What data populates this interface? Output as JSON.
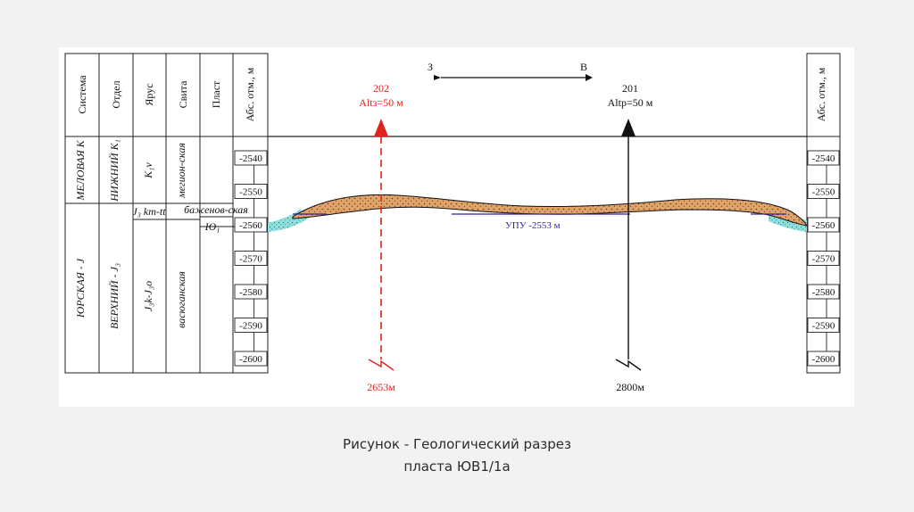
{
  "section": {
    "columns": [
      "Система",
      "Отдел",
      "Ярус",
      "Свита",
      "Пласт",
      "Абс. отм., м"
    ],
    "right_axis_label": "Абс. отм., м",
    "depth_ticks": [
      "-2540",
      "-2550",
      "-2560",
      "-2570",
      "-2580",
      "-2590",
      "-2600"
    ],
    "strat": {
      "system_upper": "МЕЛОВАЯ К",
      "system_lower": "ЮРСКАЯ - J",
      "dept_upper": "НИЖНИЙ K₁",
      "dept_lower": "ВЕРХНИЙ - J₃",
      "stage_upper": "K₁v",
      "stage_mid": "J₃ km-tt",
      "stage_lower": "J₃k-J₃o",
      "suite_upper": "мегион-ская",
      "suite_mid": "баженов-ская",
      "suite_lower": "васюганская",
      "layer": "Ю₁"
    },
    "direction": {
      "west": "З",
      "east": "В"
    },
    "wells": [
      {
        "name": "202",
        "alt": "Altз=50 м",
        "bottom": "2653м",
        "color": "#e0231c"
      },
      {
        "name": "201",
        "alt": "Altр=50 м",
        "bottom": "2800м",
        "color": "#111111"
      }
    ],
    "contact_label": "УПУ -2553 м",
    "colors": {
      "reservoir": "#d9a066",
      "water": "#6fd3cf",
      "contact": "#3a1ca8"
    }
  },
  "caption": {
    "line1": "Рисунок - Геологический разрез",
    "line2": "пласта ЮВ1/1а"
  }
}
